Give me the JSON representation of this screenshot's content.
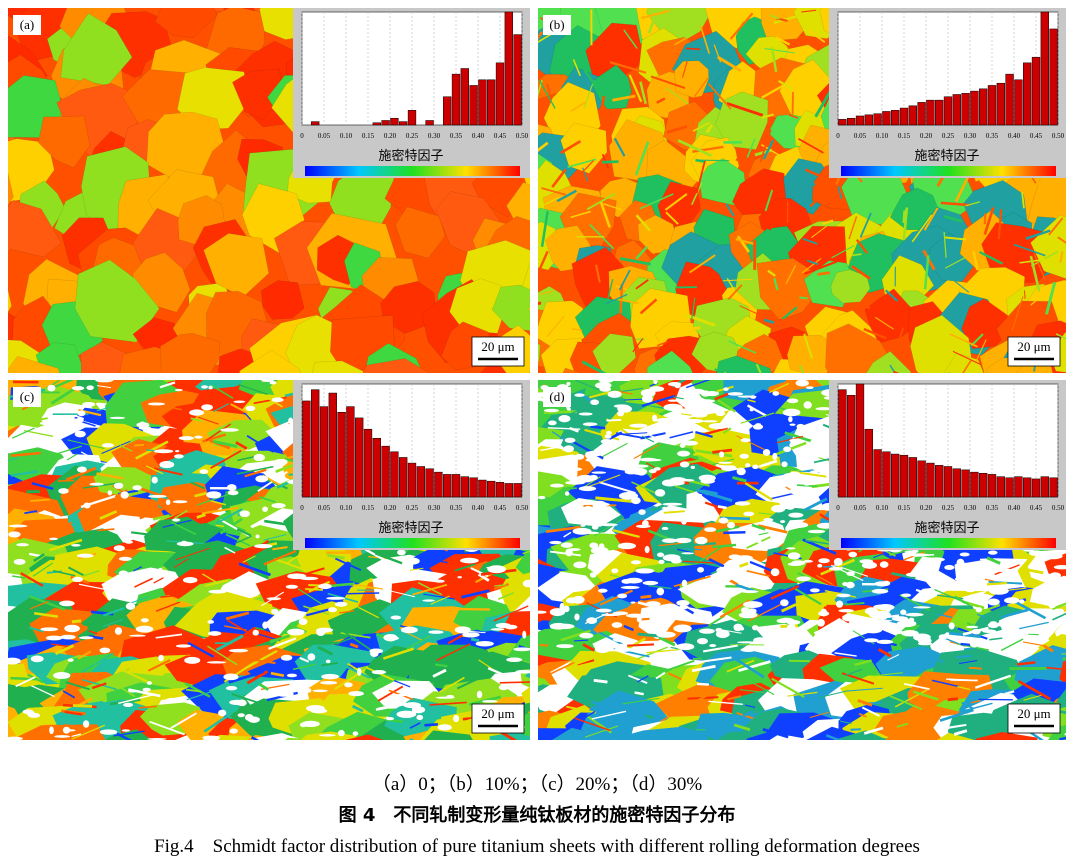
{
  "panels": [
    {
      "label": "(a)",
      "scale_bar": "20 μm"
    },
    {
      "label": "(b)",
      "scale_bar": "20 μm"
    },
    {
      "label": "(c)",
      "scale_bar": "20 μm"
    },
    {
      "label": "(d)",
      "scale_bar": "20 μm"
    }
  ],
  "chart_data": [
    {
      "type": "histogram",
      "xlabel": "施密特因子",
      "color": "#cc0000",
      "xlim": [
        0,
        0.5
      ],
      "ylim": [
        0,
        100
      ],
      "grid": true,
      "xticks": [
        0,
        0.05,
        {
          "value": 0.1,
          "label": "0.10"
        },
        0.15,
        {
          "value": 0.2,
          "label": "0.20"
        },
        0.25,
        {
          "value": 0.3,
          "label": "0.30"
        },
        0.35,
        {
          "value": 0.4,
          "label": "0.40"
        },
        0.45,
        {
          "value": 0.5,
          "label": "0.50"
        }
      ],
      "bins": [
        0,
        0.02,
        0.04,
        0.06,
        0.08,
        0.1,
        0.12,
        0.14,
        0.16,
        0.18,
        0.2,
        0.22,
        0.24,
        0.26,
        0.28,
        0.3,
        0.32,
        0.34,
        0.36,
        0.38,
        0.4,
        0.42,
        0.44,
        0.46,
        0.48,
        0.5
      ],
      "values": [
        0,
        3,
        0,
        0,
        0,
        0,
        0,
        0,
        2,
        4,
        6,
        3,
        13,
        0,
        4,
        0,
        25,
        45,
        50,
        35,
        40,
        40,
        55,
        100,
        80
      ]
    },
    {
      "type": "histogram",
      "xlabel": "施密特因子",
      "color": "#cc0000",
      "xlim": [
        0,
        0.5
      ],
      "ylim": [
        0,
        100
      ],
      "grid": true,
      "xticks": [
        0,
        0.05,
        {
          "value": 0.1,
          "label": "0.10"
        },
        0.15,
        {
          "value": 0.2,
          "label": "0.20"
        },
        0.25,
        {
          "value": 0.3,
          "label": "0.30"
        },
        0.35,
        {
          "value": 0.4,
          "label": "0.40"
        },
        0.45,
        {
          "value": 0.5,
          "label": "0.50"
        }
      ],
      "bins": [
        0,
        0.02,
        0.04,
        0.06,
        0.08,
        0.1,
        0.12,
        0.14,
        0.16,
        0.18,
        0.2,
        0.22,
        0.24,
        0.26,
        0.28,
        0.3,
        0.32,
        0.34,
        0.36,
        0.38,
        0.4,
        0.42,
        0.44,
        0.46,
        0.48,
        0.5
      ],
      "values": [
        5,
        6,
        8,
        9,
        10,
        12,
        13,
        15,
        17,
        20,
        22,
        22,
        25,
        27,
        28,
        30,
        32,
        35,
        37,
        45,
        40,
        55,
        60,
        100,
        85
      ]
    },
    {
      "type": "histogram",
      "xlabel": "施密特因子",
      "color": "#cc0000",
      "xlim": [
        0,
        0.5
      ],
      "ylim": [
        0,
        100
      ],
      "grid": true,
      "xticks": [
        0,
        0.05,
        {
          "value": 0.1,
          "label": "0.10"
        },
        0.15,
        {
          "value": 0.2,
          "label": "0.20"
        },
        0.25,
        {
          "value": 0.3,
          "label": "0.30"
        },
        0.35,
        {
          "value": 0.4,
          "label": "0.40"
        },
        0.45,
        {
          "value": 0.5,
          "label": "0.50"
        }
      ],
      "bins": [
        0,
        0.02,
        0.04,
        0.06,
        0.08,
        0.1,
        0.12,
        0.14,
        0.16,
        0.18,
        0.2,
        0.22,
        0.24,
        0.26,
        0.28,
        0.3,
        0.32,
        0.34,
        0.36,
        0.38,
        0.4,
        0.42,
        0.44,
        0.46,
        0.48,
        0.5
      ],
      "values": [
        85,
        95,
        80,
        92,
        75,
        80,
        70,
        60,
        52,
        45,
        40,
        35,
        30,
        27,
        25,
        22,
        20,
        20,
        18,
        17,
        15,
        14,
        13,
        12,
        12
      ]
    },
    {
      "type": "histogram",
      "xlabel": "施密特因子",
      "color": "#cc0000",
      "xlim": [
        0,
        0.5
      ],
      "ylim": [
        0,
        100
      ],
      "grid": true,
      "xticks": [
        0,
        0.05,
        {
          "value": 0.1,
          "label": "0.10"
        },
        0.15,
        {
          "value": 0.2,
          "label": "0.20"
        },
        0.25,
        {
          "value": 0.3,
          "label": "0.30"
        },
        0.35,
        {
          "value": 0.4,
          "label": "0.40"
        },
        0.45,
        {
          "value": 0.5,
          "label": "0.50"
        }
      ],
      "bins": [
        0,
        0.02,
        0.04,
        0.06,
        0.08,
        0.1,
        0.12,
        0.14,
        0.16,
        0.18,
        0.2,
        0.22,
        0.24,
        0.26,
        0.28,
        0.3,
        0.32,
        0.34,
        0.36,
        0.38,
        0.4,
        0.42,
        0.44,
        0.46,
        0.48,
        0.5
      ],
      "values": [
        95,
        90,
        100,
        60,
        42,
        40,
        38,
        37,
        35,
        32,
        30,
        28,
        27,
        25,
        24,
        22,
        21,
        20,
        18,
        17,
        18,
        17,
        16,
        18,
        17
      ]
    }
  ],
  "caption": {
    "panels": "（a）0；（b）10%；（c）20%；（d）30%",
    "title_cn": "图 4　不同轧制变形量纯钛板材的施密特因子分布",
    "title_en": "Fig.4　Schmidt factor distribution of pure titanium sheets with different rolling deformation degrees"
  }
}
